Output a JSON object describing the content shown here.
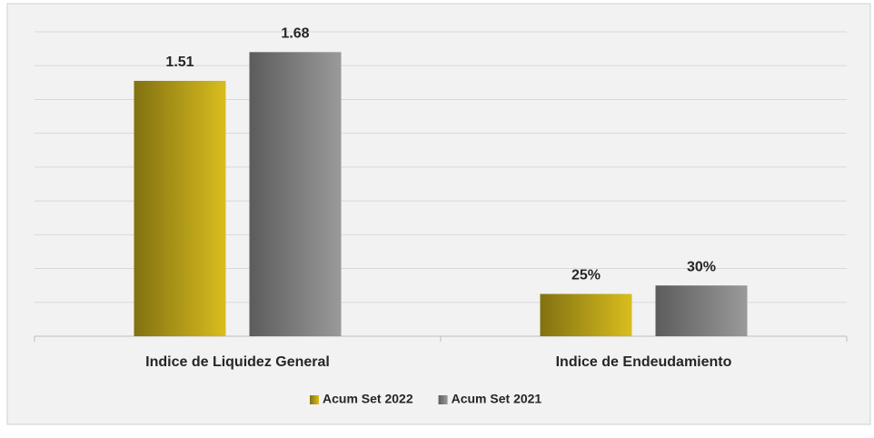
{
  "chart_data": {
    "type": "bar",
    "categories": [
      "Indice de Liquidez General",
      "Indice de Endeudamiento"
    ],
    "series": [
      {
        "name": "Acum Set 2022",
        "color": "#d9bd1e",
        "values": [
          1.51,
          0.25
        ],
        "value_labels": [
          "1.51",
          "25%"
        ]
      },
      {
        "name": "Acum Set 2021",
        "color": "#9a9a9a",
        "values": [
          1.68,
          0.3
        ],
        "value_labels": [
          "1.68",
          "30%"
        ]
      }
    ],
    "ylim": [
      0,
      1.8
    ],
    "yticks": [
      0,
      0.2,
      0.4,
      0.6,
      0.8,
      1,
      1.2,
      1.4,
      1.6,
      1.8
    ],
    "grid": true,
    "legend": "bottom"
  }
}
